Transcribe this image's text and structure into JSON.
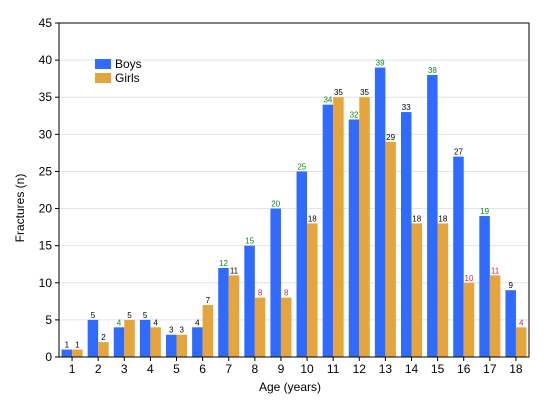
{
  "chart_data": {
    "type": "bar",
    "xlabel": "Age (years)",
    "ylabel": "Fractures (n)",
    "ylim": [
      0,
      45
    ],
    "yticks": [
      0,
      5,
      10,
      15,
      20,
      25,
      30,
      35,
      40,
      45
    ],
    "grid": "horizontal",
    "legend_position": "top-left",
    "categories": [
      "1",
      "2",
      "3",
      "4",
      "5",
      "6",
      "7",
      "8",
      "9",
      "10",
      "11",
      "12",
      "13",
      "14",
      "15",
      "16",
      "17",
      "18"
    ],
    "series": [
      {
        "name": "Boys",
        "color": "#2f6bff",
        "values": [
          1,
          5,
          4,
          5,
          3,
          4,
          12,
          15,
          20,
          25,
          34,
          32,
          39,
          33,
          38,
          27,
          19,
          9
        ],
        "label_colors": [
          "#000000",
          "#000000",
          "#0a8a1f",
          "#000000",
          "#000000",
          "#000000",
          "#0a8a1f",
          "#0a8a1f",
          "#0a8a1f",
          "#0a8a1f",
          "#0a8a1f",
          "#0a8a1f",
          "#0a8a1f",
          "#000000",
          "#0a8a1f",
          "#000000",
          "#0a8a1f",
          "#000000"
        ]
      },
      {
        "name": "Girls",
        "color": "#e6a43c",
        "values": [
          1,
          2,
          5,
          4,
          3,
          7,
          11,
          8,
          8,
          18,
          35,
          35,
          29,
          18,
          18,
          10,
          11,
          4
        ],
        "label_colors": [
          "#000000",
          "#000000",
          "#000000",
          "#000000",
          "#000000",
          "#000000",
          "#000000",
          "#d0244a",
          "#d0244a",
          "#000000",
          "#000000",
          "#000000",
          "#000000",
          "#000000",
          "#000000",
          "#d0244a",
          "#d0244a",
          "#d0244a"
        ]
      }
    ]
  }
}
